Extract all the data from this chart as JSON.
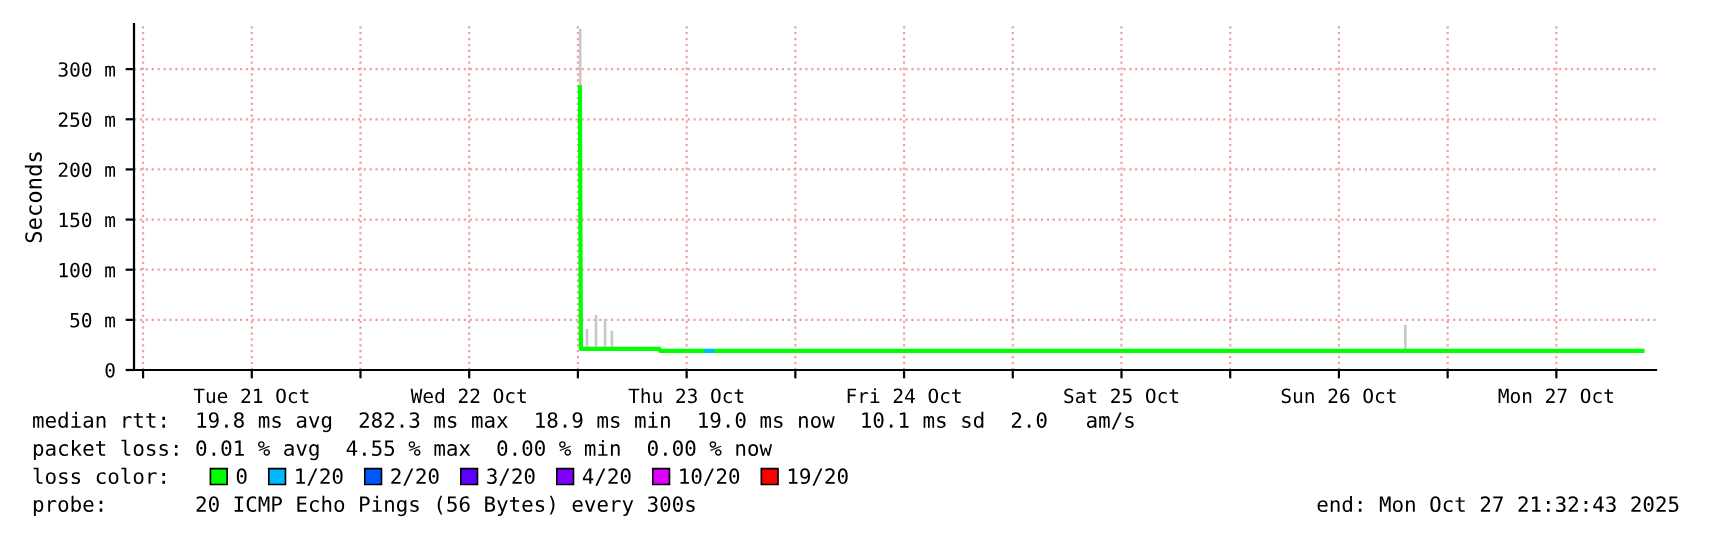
{
  "chart_data": {
    "type": "line",
    "ylabel": "Seconds",
    "xlim": [
      "2025-10-20T23:00",
      "2025-10-27T23:00"
    ],
    "ylim": [
      0,
      345
    ],
    "xticks": [
      {
        "value": "2025-10-21T00:00",
        "label": null
      },
      {
        "value": "2025-10-21T12:00",
        "label": "Tue 21 Oct"
      },
      {
        "value": "2025-10-22T00:00",
        "label": null
      },
      {
        "value": "2025-10-22T12:00",
        "label": "Wed 22 Oct"
      },
      {
        "value": "2025-10-23T00:00",
        "label": null
      },
      {
        "value": "2025-10-23T12:00",
        "label": "Thu 23 Oct"
      },
      {
        "value": "2025-10-24T00:00",
        "label": null
      },
      {
        "value": "2025-10-24T12:00",
        "label": "Fri 24 Oct"
      },
      {
        "value": "2025-10-25T00:00",
        "label": null
      },
      {
        "value": "2025-10-25T12:00",
        "label": "Sat 25 Oct"
      },
      {
        "value": "2025-10-26T00:00",
        "label": null
      },
      {
        "value": "2025-10-26T12:00",
        "label": "Sun 26 Oct"
      },
      {
        "value": "2025-10-27T00:00",
        "label": null
      },
      {
        "value": "2025-10-27T12:00",
        "label": "Mon 27 Oct"
      }
    ],
    "yticks": [
      0,
      {
        "value": 50,
        "label": "50 m"
      },
      {
        "value": 100,
        "label": "100 m"
      },
      {
        "value": 150,
        "label": "150 m"
      },
      {
        "value": 200,
        "label": "200 m"
      },
      {
        "value": 250,
        "label": "250 m"
      },
      {
        "value": 300,
        "label": "300 m"
      }
    ],
    "grid": true,
    "legend": "bottom left",
    "legend_title": "loss color:",
    "series": [
      {
        "type": "bar",
        "color": "#c8c8c8",
        "x": [
          "2025-10-23T00:15",
          "2025-10-23T01:00",
          "2025-10-23T02:00",
          "2025-10-23T03:00",
          "2025-10-23T03:45",
          "2025-10-26T19:20"
        ],
        "base": [
          21,
          21,
          21,
          21,
          21,
          19
        ],
        "values": [
          319,
          20,
          34,
          30,
          18,
          26
        ]
      },
      {
        "name": "0",
        "color": "#00ff00",
        "x": [
          "2025-10-23T00:13",
          "2025-10-23T00:20",
          "2025-10-23T09:00",
          "2025-10-23T09:05",
          "2025-10-23T14:00",
          "2025-10-23T15:00",
          "2025-10-26T19:20",
          "2025-10-27T21:30"
        ],
        "values": [
          282,
          21,
          21,
          19,
          19,
          19,
          19,
          19
        ]
      },
      {
        "name": "1/20",
        "color": "#00b8ff",
        "x": [
          "2025-10-23T14:10",
          "2025-10-23T14:50"
        ],
        "values": [
          19,
          19
        ]
      },
      {
        "name": "2/20",
        "color": "#0059ff"
      },
      {
        "name": "3/20",
        "color": "#5e00ff"
      },
      {
        "name": "4/20",
        "color": "#7e00ff"
      },
      {
        "name": "10/20",
        "color": "#dd00ff"
      },
      {
        "name": "19/20",
        "color": "#ff0000"
      }
    ],
    "annotations": [
      "median rtt:  19.8 ms avg  282.3 ms max  18.9 ms min  19.0 ms now  10.1 ms sd  2.0   am/s",
      "packet loss: 0.01 % avg  4.55 % max  0.00 % min  0.00 % now",
      "probe:       20 ICMP Echo Pings (56 Bytes) every 300s",
      "end: Mon Oct 27 21:32:43 2025"
    ]
  }
}
